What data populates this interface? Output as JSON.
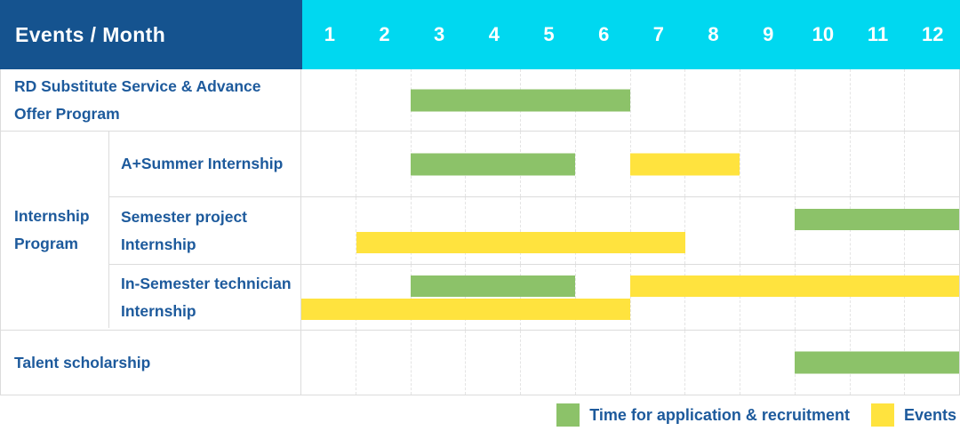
{
  "header": {
    "title": "Events / Month"
  },
  "colors": {
    "header_bg": "#15538f",
    "month_strip_bg": "#00d8f0",
    "application_bar": "#8cc269",
    "events_bar": "#ffe33e",
    "label_text": "#1d5a9c",
    "grid_line": "#dcdcdc"
  },
  "chart_data": {
    "type": "gantt",
    "title": "Events / Month",
    "months": [
      1,
      2,
      3,
      4,
      5,
      6,
      7,
      8,
      9,
      10,
      11,
      12
    ],
    "x_range": [
      1,
      12
    ],
    "grid": "dashed-vertical-month-lines",
    "sections": [
      {
        "label": "RD Substitute Service & Advance Offer Program",
        "rows": [
          {
            "label": "RD Substitute Service & Advance Offer Program",
            "bars": [
              {
                "type": "application",
                "start_month": 3,
                "end_month": 6,
                "slot": "center"
              }
            ]
          }
        ]
      },
      {
        "label": "Internship Program",
        "rows": [
          {
            "label": "A+Summer Internship",
            "bars": [
              {
                "type": "application",
                "start_month": 3,
                "end_month": 5,
                "slot": "center"
              },
              {
                "type": "events",
                "start_month": 7,
                "end_month": 8,
                "slot": "center"
              }
            ]
          },
          {
            "label": "Semester project Internship",
            "bars": [
              {
                "type": "application",
                "start_month": 10,
                "end_month": 12,
                "slot": "top"
              },
              {
                "type": "events",
                "start_month": 2,
                "end_month": 7,
                "slot": "bottom"
              }
            ]
          },
          {
            "label": "In-Semester technician Internship",
            "bars": [
              {
                "type": "application",
                "start_month": 3,
                "end_month": 5,
                "slot": "top"
              },
              {
                "type": "events",
                "start_month": 7,
                "end_month": 12,
                "slot": "top"
              },
              {
                "type": "events",
                "start_month": 1,
                "end_month": 6,
                "slot": "bottom"
              }
            ]
          }
        ]
      },
      {
        "label": "Talent scholarship",
        "rows": [
          {
            "label": "Talent scholarship",
            "bars": [
              {
                "type": "application",
                "start_month": 10,
                "end_month": 12,
                "slot": "center"
              }
            ]
          }
        ]
      }
    ],
    "legend_position": "bottom-right"
  },
  "legend": [
    {
      "type": "application",
      "label": "Time for application & recruitment"
    },
    {
      "type": "events",
      "label": "Events"
    }
  ]
}
